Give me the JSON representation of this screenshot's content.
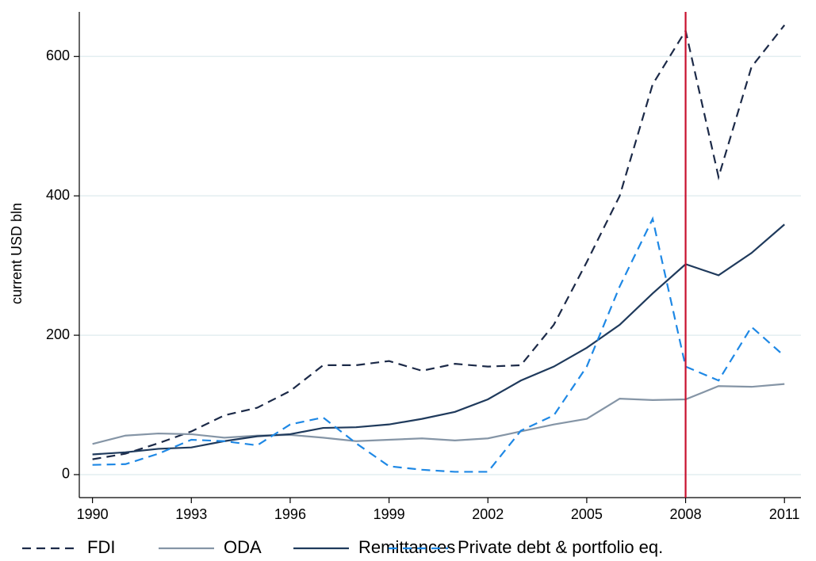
{
  "chart_data": {
    "type": "line",
    "y_label": "current USD bln",
    "x": [
      1990,
      1991,
      1992,
      1993,
      1994,
      1995,
      1996,
      1997,
      1998,
      1999,
      2000,
      2001,
      2002,
      2003,
      2004,
      2005,
      2006,
      2007,
      2008,
      2009,
      2010,
      2011
    ],
    "series": [
      {
        "name": "FDI",
        "color": "#1c2a48",
        "dashed": true,
        "values": [
          22,
          30,
          45,
          62,
          85,
          96,
          120,
          157,
          157,
          163,
          149,
          159,
          155,
          157,
          215,
          305,
          400,
          560,
          637,
          427,
          585,
          645
        ]
      },
      {
        "name": "ODA",
        "color": "#8595a6",
        "dashed": false,
        "values": [
          44,
          56,
          59,
          58,
          53,
          56,
          57,
          53,
          48,
          50,
          52,
          49,
          52,
          62,
          72,
          80,
          109,
          107,
          108,
          127,
          126,
          130
        ]
      },
      {
        "name": "Remittances",
        "color": "#1f3a5c",
        "dashed": false,
        "values": [
          29,
          32,
          37,
          39,
          48,
          55,
          58,
          67,
          68,
          72,
          80,
          90,
          108,
          135,
          155,
          182,
          215,
          260,
          302,
          286,
          318,
          359
        ]
      },
      {
        "name": "Private debt & portfolio eq.",
        "color": "#1e88e5",
        "dashed": true,
        "values": [
          14,
          15,
          30,
          50,
          48,
          42,
          72,
          82,
          45,
          12,
          7,
          4,
          4,
          63,
          85,
          155,
          270,
          367,
          155,
          135,
          212,
          170
        ]
      }
    ],
    "xlim": [
      1989.6,
      2011.5
    ],
    "ylim": [
      -33,
      664
    ],
    "xticks": [
      1990,
      1993,
      1996,
      1999,
      2002,
      2005,
      2008,
      2011
    ],
    "yticks": [
      0,
      200,
      400,
      600
    ],
    "grid": true,
    "grid_color": "#e3eef0",
    "vline": 2008,
    "vline_color": "#c8102e",
    "legend": "bottom"
  }
}
